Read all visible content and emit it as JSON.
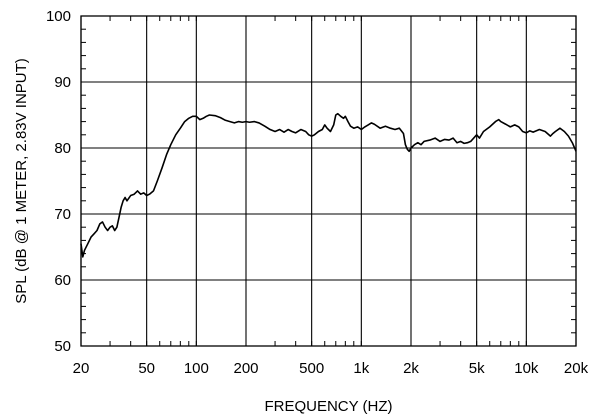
{
  "chart_data": {
    "type": "line",
    "title": "",
    "xlabel": "FREQUENCY  (HZ)",
    "ylabel": "SPL (dB @ 1 METER, 2.83V INPUT)",
    "xscale": "log",
    "xlim": [
      20,
      20000
    ],
    "ylim": [
      50,
      100
    ],
    "grid": true,
    "legend": "none",
    "line_color": "#000000",
    "x_tick_labels": [
      {
        "value": 20,
        "label": "20"
      },
      {
        "value": 50,
        "label": "50"
      },
      {
        "value": 100,
        "label": "100"
      },
      {
        "value": 200,
        "label": "200"
      },
      {
        "value": 500,
        "label": "500"
      },
      {
        "value": 1000,
        "label": "1k"
      },
      {
        "value": 2000,
        "label": "2k"
      },
      {
        "value": 5000,
        "label": "5k"
      },
      {
        "value": 10000,
        "label": "10k"
      },
      {
        "value": 20000,
        "label": "20k"
      }
    ],
    "y_tick_labels": [
      {
        "value": 50,
        "label": "50"
      },
      {
        "value": 60,
        "label": "60"
      },
      {
        "value": 70,
        "label": "70"
      },
      {
        "value": 80,
        "label": "80"
      },
      {
        "value": 90,
        "label": "90"
      },
      {
        "value": 100,
        "label": "100"
      }
    ],
    "series": [
      {
        "points": [
          [
            20,
            65.5
          ],
          [
            20.5,
            63.5
          ],
          [
            21,
            64.5
          ],
          [
            22,
            65.5
          ],
          [
            23,
            66.5
          ],
          [
            24,
            67
          ],
          [
            25,
            67.5
          ],
          [
            26,
            68.5
          ],
          [
            27,
            68.8
          ],
          [
            28,
            68
          ],
          [
            29,
            67.5
          ],
          [
            30,
            68
          ],
          [
            31,
            68.2
          ],
          [
            32,
            67.5
          ],
          [
            33,
            68
          ],
          [
            34,
            69.5
          ],
          [
            35,
            71
          ],
          [
            36,
            72
          ],
          [
            37,
            72.5
          ],
          [
            38,
            72
          ],
          [
            40,
            72.8
          ],
          [
            42,
            73
          ],
          [
            44,
            73.5
          ],
          [
            46,
            73
          ],
          [
            48,
            73.2
          ],
          [
            50,
            72.8
          ],
          [
            52,
            73
          ],
          [
            55,
            73.5
          ],
          [
            58,
            75
          ],
          [
            62,
            77
          ],
          [
            66,
            79
          ],
          [
            70,
            80.5
          ],
          [
            75,
            82
          ],
          [
            80,
            83
          ],
          [
            85,
            84
          ],
          [
            90,
            84.5
          ],
          [
            95,
            84.8
          ],
          [
            100,
            84.8
          ],
          [
            105,
            84.3
          ],
          [
            110,
            84.5
          ],
          [
            115,
            84.8
          ],
          [
            120,
            85
          ],
          [
            130,
            84.9
          ],
          [
            140,
            84.6
          ],
          [
            150,
            84.2
          ],
          [
            160,
            84
          ],
          [
            170,
            83.8
          ],
          [
            180,
            84
          ],
          [
            190,
            83.9
          ],
          [
            200,
            84
          ],
          [
            210,
            83.9
          ],
          [
            225,
            84
          ],
          [
            240,
            83.8
          ],
          [
            260,
            83.3
          ],
          [
            280,
            82.8
          ],
          [
            300,
            82.5
          ],
          [
            320,
            82.8
          ],
          [
            340,
            82.4
          ],
          [
            360,
            82.8
          ],
          [
            380,
            82.5
          ],
          [
            400,
            82.3
          ],
          [
            430,
            82.8
          ],
          [
            460,
            82.5
          ],
          [
            480,
            82
          ],
          [
            500,
            81.8
          ],
          [
            520,
            82
          ],
          [
            550,
            82.5
          ],
          [
            580,
            82.8
          ],
          [
            600,
            83.5
          ],
          [
            620,
            83
          ],
          [
            650,
            82.5
          ],
          [
            680,
            83.5
          ],
          [
            700,
            85
          ],
          [
            720,
            85.2
          ],
          [
            750,
            84.8
          ],
          [
            780,
            84.5
          ],
          [
            800,
            84.8
          ],
          [
            830,
            84
          ],
          [
            860,
            83.3
          ],
          [
            900,
            83
          ],
          [
            950,
            83.2
          ],
          [
            1000,
            82.8
          ],
          [
            1050,
            83.2
          ],
          [
            1100,
            83.5
          ],
          [
            1150,
            83.8
          ],
          [
            1200,
            83.6
          ],
          [
            1300,
            83
          ],
          [
            1400,
            83.3
          ],
          [
            1500,
            83
          ],
          [
            1600,
            82.8
          ],
          [
            1700,
            83
          ],
          [
            1800,
            82.2
          ],
          [
            1850,
            80.5
          ],
          [
            1900,
            79.8
          ],
          [
            1950,
            79.5
          ],
          [
            2000,
            80
          ],
          [
            2100,
            80.5
          ],
          [
            2200,
            80.8
          ],
          [
            2300,
            80.5
          ],
          [
            2400,
            81
          ],
          [
            2600,
            81.2
          ],
          [
            2800,
            81.5
          ],
          [
            3000,
            81
          ],
          [
            3200,
            81.3
          ],
          [
            3400,
            81.2
          ],
          [
            3600,
            81.5
          ],
          [
            3800,
            80.8
          ],
          [
            4000,
            81
          ],
          [
            4200,
            80.7
          ],
          [
            4400,
            80.8
          ],
          [
            4600,
            81
          ],
          [
            4800,
            81.5
          ],
          [
            5000,
            82
          ],
          [
            5200,
            81.5
          ],
          [
            5500,
            82.5
          ],
          [
            6000,
            83.2
          ],
          [
            6500,
            84
          ],
          [
            6800,
            84.3
          ],
          [
            7000,
            84
          ],
          [
            7500,
            83.6
          ],
          [
            8000,
            83.2
          ],
          [
            8500,
            83.5
          ],
          [
            9000,
            83.2
          ],
          [
            9500,
            82.5
          ],
          [
            10000,
            82.3
          ],
          [
            10500,
            82.6
          ],
          [
            11000,
            82.4
          ],
          [
            12000,
            82.8
          ],
          [
            13000,
            82.5
          ],
          [
            14000,
            81.8
          ],
          [
            14500,
            82.2
          ],
          [
            15000,
            82.5
          ],
          [
            16000,
            83
          ],
          [
            17000,
            82.5
          ],
          [
            18000,
            81.8
          ],
          [
            19000,
            80.8
          ],
          [
            20000,
            79.5
          ]
        ]
      }
    ]
  }
}
